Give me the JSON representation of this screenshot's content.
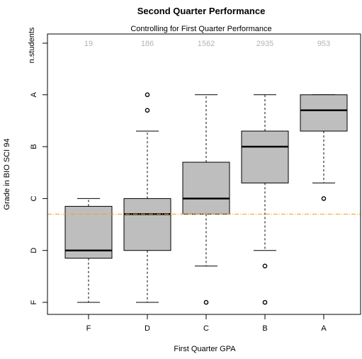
{
  "chart_data": {
    "type": "box",
    "title": "Second Quarter Performance",
    "subtitle": "Controlling for First Quarter Performance",
    "xlabel": "First Quarter GPA",
    "ylabel": "Grade in BIO SCI 94",
    "top_axis_label": "n.students",
    "y_tick_labels": [
      "F",
      "D",
      "C",
      "B",
      "A"
    ],
    "y_tick_values": [
      0,
      1,
      2,
      3,
      4
    ],
    "ylim": [
      -0.1,
      5.0
    ],
    "categories": [
      "F",
      "D",
      "C",
      "B",
      "A"
    ],
    "counts": [
      "19",
      "186",
      "1562",
      "2935",
      "953"
    ],
    "boxes": [
      {
        "category": "F",
        "whisker_low": 0.0,
        "q1": 0.85,
        "median": 1.0,
        "q3": 1.85,
        "whisker_high": 2.0,
        "outliers": []
      },
      {
        "category": "D",
        "whisker_low": 0.0,
        "q1": 1.0,
        "median": 1.7,
        "q3": 2.0,
        "whisker_high": 3.3,
        "outliers": [
          3.7,
          4.0
        ]
      },
      {
        "category": "C",
        "whisker_low": 0.7,
        "q1": 1.7,
        "median": 2.0,
        "q3": 2.7,
        "whisker_high": 4.0,
        "outliers": [
          0.0
        ]
      },
      {
        "category": "B",
        "whisker_low": 1.0,
        "q1": 2.3,
        "median": 3.0,
        "q3": 3.3,
        "whisker_high": 4.0,
        "outliers": [
          0.7,
          0.0
        ]
      },
      {
        "category": "A",
        "whisker_low": 2.3,
        "q1": 3.3,
        "median": 3.7,
        "q3": 4.0,
        "whisker_high": 4.0,
        "outliers": [
          2.0
        ]
      }
    ],
    "reference_line": {
      "y": 1.7,
      "color": "#e5a21a"
    },
    "box_fill": "#bebebe",
    "count_color": "#b3b3b3",
    "grid": false
  }
}
